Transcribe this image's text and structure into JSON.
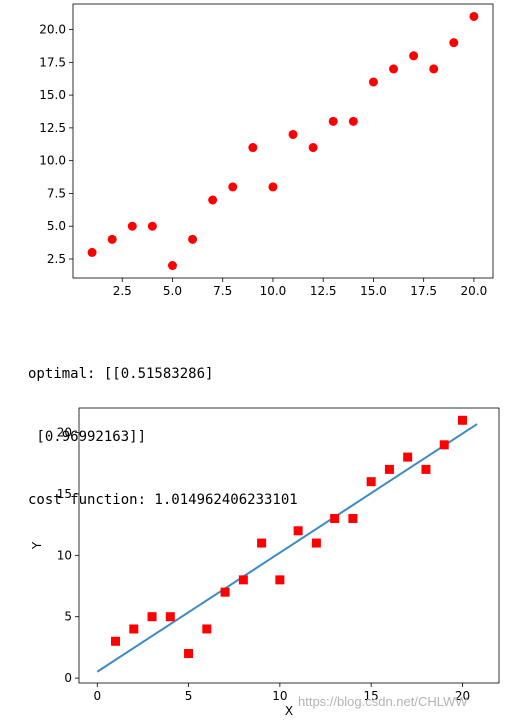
{
  "output": {
    "line1": "optimal: [[0.51583286]",
    "line2": " [0.96992163]]",
    "line3": "cost function: 1.014962406233101"
  },
  "watermark": "https://blog.csdn.net/CHLWW",
  "colors": {
    "points": "#ff0000",
    "fit_line": "#3d8ac8",
    "axis": "#000000"
  },
  "chart_data": [
    {
      "type": "scatter",
      "title": "",
      "xlabel": "",
      "ylabel": "",
      "marker": "circle",
      "xlim": [
        0.05,
        20.95
      ],
      "ylim": [
        1.05,
        21.95
      ],
      "xticks": [
        2.5,
        5.0,
        7.5,
        10.0,
        12.5,
        15.0,
        17.5,
        20.0
      ],
      "xtick_labels": [
        "2.5",
        "5.0",
        "7.5",
        "10.0",
        "12.5",
        "15.0",
        "17.5",
        "20.0"
      ],
      "yticks": [
        2.5,
        5.0,
        7.5,
        10.0,
        12.5,
        15.0,
        17.5,
        20.0
      ],
      "ytick_labels": [
        "2.5",
        "5.0",
        "7.5",
        "10.0",
        "12.5",
        "15.0",
        "17.5",
        "20.0"
      ],
      "series": [
        {
          "x": [
            1,
            2,
            3,
            4,
            5,
            6,
            7,
            8,
            9,
            10,
            11,
            12,
            13,
            14,
            15,
            16,
            17,
            18,
            19,
            20
          ],
          "y": [
            3,
            4,
            5,
            5,
            2,
            4,
            7,
            8,
            11,
            8,
            12,
            11,
            13,
            13,
            16,
            17,
            18,
            17,
            19,
            21
          ]
        }
      ]
    },
    {
      "type": "scatter",
      "title": "",
      "xlabel": "X",
      "ylabel": "Y",
      "marker": "square",
      "xlim": [
        -1,
        22
      ],
      "ylim": [
        -0.4,
        22
      ],
      "xticks": [
        0,
        5,
        10,
        15,
        20
      ],
      "xtick_labels": [
        "0",
        "5",
        "10",
        "15",
        "20"
      ],
      "yticks": [
        0,
        5,
        10,
        15,
        20
      ],
      "ytick_labels": [
        "0",
        "5",
        "10",
        "15",
        "20"
      ],
      "series": [
        {
          "x": [
            1,
            2,
            3,
            4,
            5,
            6,
            7,
            8,
            9,
            10,
            11,
            12,
            13,
            14,
            15,
            16,
            17,
            18,
            19,
            20
          ],
          "y": [
            3,
            4,
            5,
            5,
            2,
            4,
            7,
            8,
            11,
            8,
            12,
            11,
            13,
            13,
            16,
            17,
            18,
            17,
            19,
            21
          ]
        }
      ],
      "fit_line": {
        "x": [
          0,
          20.8
        ],
        "y": [
          0.51583286,
          20.69
        ],
        "intercept": 0.51583286,
        "slope": 0.96992163
      }
    }
  ]
}
